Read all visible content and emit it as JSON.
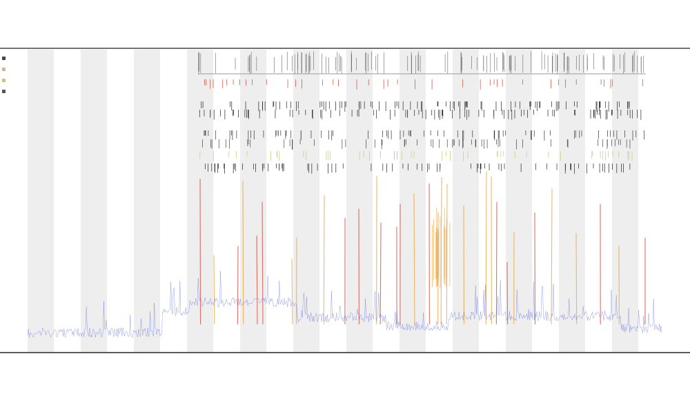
{
  "chart_data": {
    "type": "line",
    "title_lines": [
      "",
      "",
      ""
    ],
    "legend": {
      "placement": "left",
      "entries": [
        {
          "label": "",
          "color": "#444444"
        },
        {
          "label": "",
          "color": "#d9b38c"
        },
        {
          "label": "",
          "color": "#c8c86e"
        },
        {
          "label": "",
          "color": "#555555"
        }
      ]
    },
    "xlabel": "",
    "ylabel": "",
    "x_tick_labels": [],
    "grid": false,
    "series": [
      {
        "color": "#4a5ad8"
      },
      {
        "color": "#f0a030"
      },
      {
        "color": "#d84030"
      }
    ]
  }
}
